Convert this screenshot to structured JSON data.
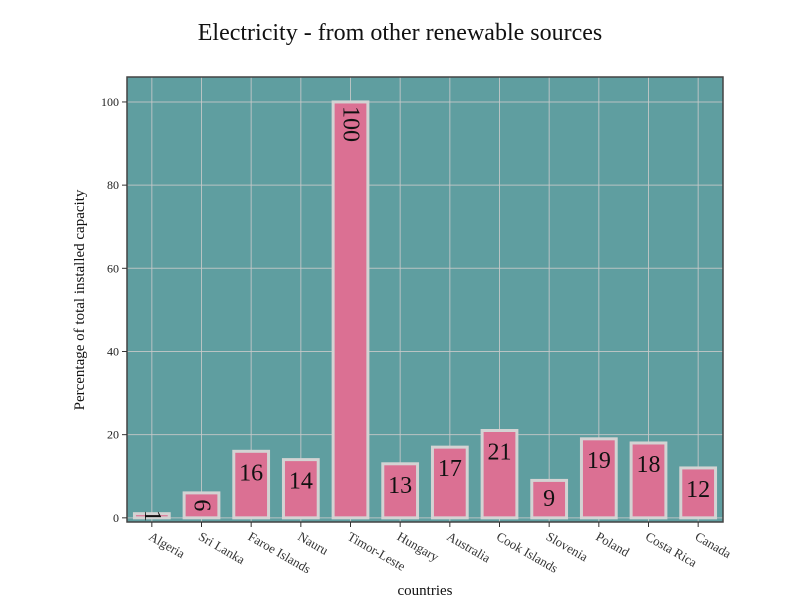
{
  "chart_data": {
    "type": "bar",
    "title": "Electricity - from other renewable sources",
    "xlabel": "countries",
    "ylabel": "Percentage of total installed capacity",
    "categories": [
      "Algeria",
      "Sri Lanka",
      "Faroe Islands",
      "Nauru",
      "Timor-Leste",
      "Hungary",
      "Australia",
      "Cook Islands",
      "Slovenia",
      "Poland",
      "Costa Rica",
      "Canada"
    ],
    "values": [
      1,
      6,
      16,
      14,
      100,
      13,
      17,
      21,
      9,
      19,
      18,
      12
    ],
    "value_labels": [
      "1",
      "6",
      "16",
      "14",
      "100",
      "13",
      "17",
      "21",
      "9",
      "19",
      "18",
      "12"
    ],
    "yticks": [
      0,
      20,
      40,
      60,
      80,
      100
    ],
    "ytick_labels": [
      "0",
      "20",
      "40",
      "60",
      "80",
      "100"
    ],
    "ylim": [
      -1,
      106
    ],
    "grid": true,
    "legend": "none",
    "colors": {
      "plot_background": "#5f9ea0",
      "bar_fill": "#db7093",
      "bar_edge": "#d3d3d3",
      "grid": "#c9c9c9"
    }
  }
}
